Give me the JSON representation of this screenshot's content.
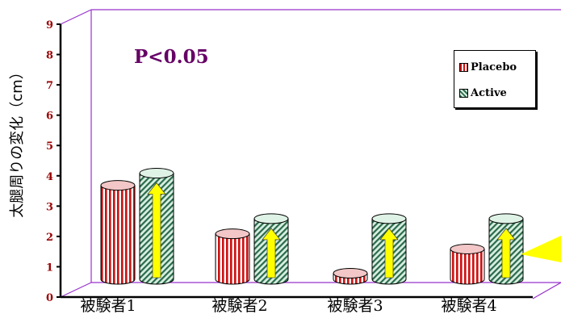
{
  "chart_data": {
    "type": "bar",
    "ylabel": "太腿周りの変化（cm）",
    "ylim": [
      0,
      9
    ],
    "yticks": [
      "0",
      "1",
      "2",
      "3",
      "4",
      "5",
      "6",
      "7",
      "8",
      "9"
    ],
    "categories": [
      "被験者1",
      "被験者2",
      "被験者3",
      "被験者4"
    ],
    "series": [
      {
        "name": "Placebo",
        "values": [
          3.1,
          1.5,
          0.2,
          1.0
        ],
        "color": "#cc1111"
      },
      {
        "name": "Active",
        "values": [
          3.5,
          2.0,
          2.0,
          2.0
        ],
        "color": "#2a6a4a"
      }
    ],
    "annotation": "P<0.05",
    "legend_position": "top-right",
    "grid": false,
    "style": "3d-cylinder",
    "arrows_on": "Active",
    "arrow_color": "#ffff00",
    "wall_color": "#9933cc"
  }
}
